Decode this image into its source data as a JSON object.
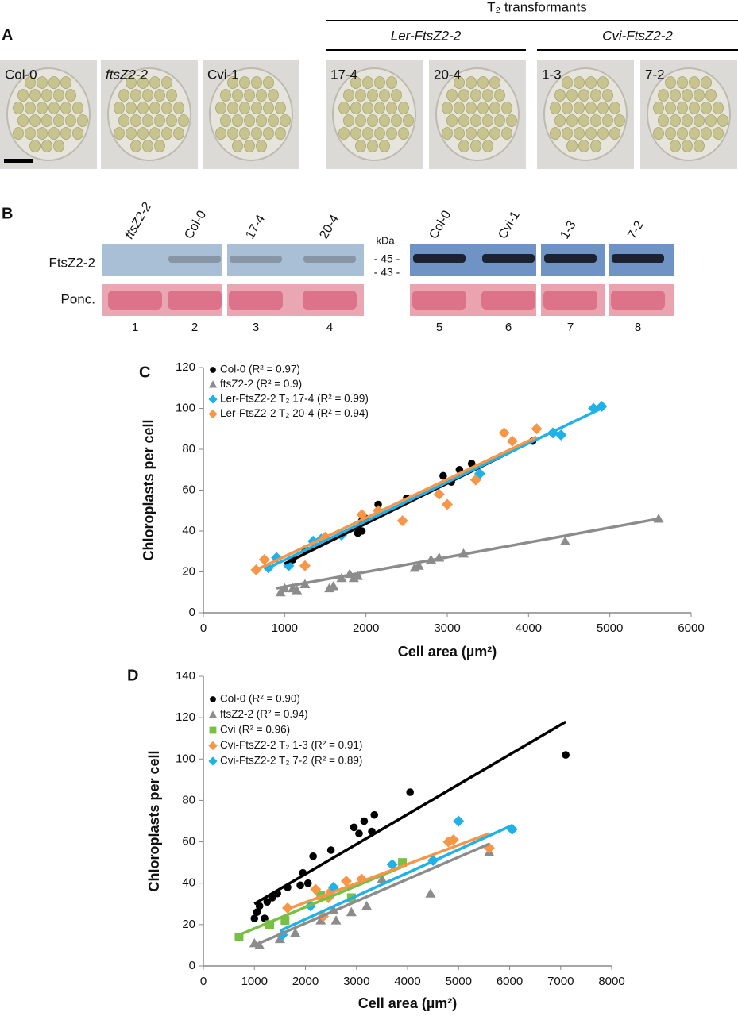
{
  "panel_a": {
    "letter": "A",
    "header": "T₂ transformants",
    "groups": [
      "Ler-FtsZ2-2",
      "Cvi-FtsZ2-2"
    ],
    "images": [
      "Col-0",
      "ftsZ2-2",
      "Cvi-1",
      "17-4",
      "20-4",
      "1-3",
      "7-2"
    ]
  },
  "panel_b": {
    "letter": "B",
    "lanes": [
      "ftsZ2-2",
      "Col-0",
      "17-4",
      "20-4",
      "Col-0",
      "Cvi-1",
      "1-3",
      "7-2"
    ],
    "rows": [
      "FtsZ2-2",
      "Ponc."
    ],
    "kda": "kDa",
    "markers": [
      "- 45 -",
      "- 43 -"
    ],
    "lane_numbers": [
      1,
      2,
      3,
      4,
      5,
      6,
      7,
      8
    ]
  },
  "chart_data": [
    {
      "type": "scatter",
      "panel_label": "C",
      "x_label": "Cell area (µm²)",
      "y_label": "Chloroplasts per cell",
      "xlim": [
        0,
        6000
      ],
      "xticks": [
        0,
        1000,
        2000,
        3000,
        4000,
        5000,
        6000
      ],
      "ylim": [
        0,
        120
      ],
      "yticks": [
        0,
        20,
        40,
        60,
        80,
        100,
        120
      ],
      "legend": "upper left",
      "series": [
        {
          "name": "Col-0 (R² = 0.97)",
          "color": "#000000",
          "marker": "circle",
          "x": [
            1050,
            1100,
            1250,
            1350,
            1450,
            1900,
            1950,
            1950,
            2000,
            2150,
            2500,
            2950,
            3050,
            3150,
            3300,
            4050
          ],
          "values": [
            23,
            26,
            31,
            35,
            36,
            39,
            40,
            45,
            46,
            53,
            56,
            67,
            64,
            70,
            73,
            84
          ],
          "trend": {
            "x": [
              1000,
              4050
            ],
            "y": [
              24,
              84
            ]
          }
        },
        {
          "name": "ftsZ2-2 (R² = 0.9)",
          "color": "#8c8c8c",
          "marker": "triangle",
          "x": [
            950,
            1000,
            1100,
            1150,
            1250,
            1550,
            1600,
            1700,
            1800,
            1850,
            1900,
            2600,
            2650,
            2800,
            2900,
            3200,
            4450,
            5600
          ],
          "values": [
            10,
            12,
            12,
            11,
            14,
            12,
            13,
            17,
            19,
            17,
            18,
            22,
            23,
            26,
            27,
            29,
            35,
            46
          ],
          "trend": {
            "x": [
              900,
              5600
            ],
            "y": [
              12,
              46
            ]
          }
        },
        {
          "name": "Ler-FtsZ2-2 T₂ 17-4 (R² = 0.99)",
          "color": "#1fb2e8",
          "marker": "diamond",
          "x": [
            800,
            900,
            1050,
            1350,
            1450,
            1700,
            3400,
            4300,
            4400,
            4800,
            4900
          ],
          "values": [
            22,
            27,
            23,
            35,
            36,
            38,
            68,
            88,
            87,
            100,
            101
          ],
          "trend": {
            "x": [
              800,
              4950
            ],
            "y": [
              22,
              101
            ]
          }
        },
        {
          "name": "Ler-FtsZ2-2 T₂ 20-4 (R² = 0.94)",
          "color": "#f79646",
          "marker": "diamond",
          "x": [
            650,
            750,
            1250,
            1500,
            1950,
            2150,
            2450,
            2900,
            3000,
            3350,
            3700,
            3800,
            4100
          ],
          "values": [
            21,
            26,
            23,
            37,
            48,
            50,
            45,
            58,
            53,
            65,
            88,
            84,
            90
          ],
          "trend": {
            "x": [
              600,
              4100
            ],
            "y": [
              20,
              86
            ]
          }
        }
      ]
    },
    {
      "type": "scatter",
      "panel_label": "D",
      "x_label": "Cell area (µm²)",
      "y_label": "Chloroplasts per cell",
      "xlim": [
        0,
        8000
      ],
      "xticks": [
        0,
        1000,
        2000,
        3000,
        4000,
        5000,
        6000,
        7000,
        8000
      ],
      "ylim": [
        0,
        140
      ],
      "yticks": [
        0,
        20,
        40,
        60,
        80,
        100,
        120,
        140
      ],
      "legend": "upper left",
      "series": [
        {
          "name": "Col-0 (R² = 0.90)",
          "color": "#000000",
          "marker": "circle",
          "x": [
            1000,
            1050,
            1100,
            1200,
            1250,
            1350,
            1450,
            1650,
            1900,
            1950,
            2050,
            2150,
            2500,
            2950,
            3050,
            3150,
            3300,
            3350,
            4050,
            7100
          ],
          "values": [
            23,
            26,
            29,
            23,
            31,
            33,
            35,
            38,
            39,
            45,
            40,
            53,
            56,
            67,
            64,
            70,
            65,
            73,
            84,
            102
          ],
          "trend": {
            "x": [
              1000,
              7100
            ],
            "y": [
              30,
              118
            ]
          }
        },
        {
          "name": "ftsZ2-2 (R² = 0.94)",
          "color": "#8c8c8c",
          "marker": "triangle",
          "x": [
            1000,
            1100,
            1500,
            1800,
            2300,
            2550,
            2600,
            2900,
            3200,
            3500,
            4450,
            5600
          ],
          "values": [
            11,
            10,
            13,
            16,
            22,
            27,
            22,
            26,
            29,
            42,
            35,
            55
          ],
          "trend": {
            "x": [
              1000,
              5600
            ],
            "y": [
              10,
              59
            ]
          }
        },
        {
          "name": "Cvi (R² = 0.96)",
          "color": "#77c043",
          "marker": "square",
          "x": [
            700,
            1300,
            1600,
            2300,
            2900,
            3900
          ],
          "values": [
            14,
            20,
            22,
            34,
            33,
            50
          ],
          "trend": {
            "x": [
              700,
              3900
            ],
            "y": [
              15,
              48
            ]
          }
        },
        {
          "name": "Cvi-FtsZ2-2 T₂ 1-3 (R² = 0.91)",
          "color": "#f79646",
          "marker": "diamond",
          "x": [
            1650,
            2200,
            2350,
            2450,
            2500,
            2800,
            3100,
            4800,
            4900,
            5600
          ],
          "values": [
            28,
            37,
            24,
            33,
            36,
            41,
            42,
            60,
            61,
            57
          ],
          "trend": {
            "x": [
              1600,
              5600
            ],
            "y": [
              27,
              64
            ]
          }
        },
        {
          "name": "Cvi-FtsZ2-2 T₂ 7-2 (R² = 0.89)",
          "color": "#1fb2e8",
          "marker": "diamond",
          "x": [
            1550,
            2100,
            2550,
            3700,
            4500,
            5000,
            6050
          ],
          "values": [
            15,
            29,
            38,
            49,
            51,
            70,
            66
          ],
          "trend": {
            "x": [
              1500,
              6050
            ],
            "y": [
              17,
              68
            ]
          }
        }
      ]
    }
  ]
}
